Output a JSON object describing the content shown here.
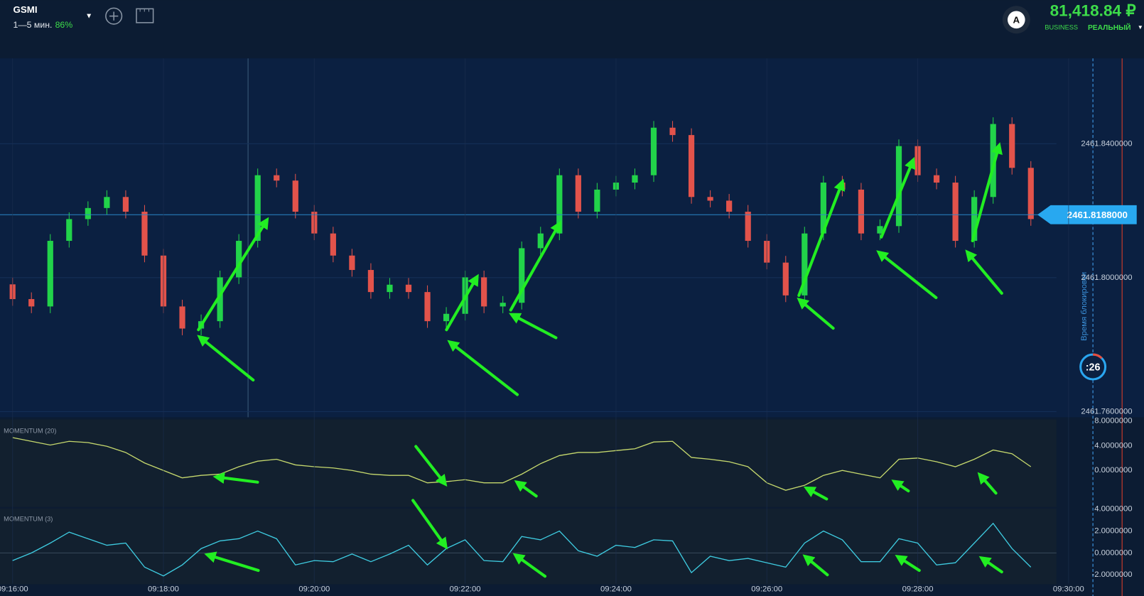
{
  "header": {
    "asset": "GSMI",
    "timeframe": "1—5 мин.",
    "payout": "86%",
    "balance": "81,418.84 ₽",
    "account_type": "BUSINESS",
    "account_mode": "РЕАЛЬНЫЙ",
    "avatar": "A"
  },
  "timer": {
    "label": "Время блокировки",
    "countdown": ":26"
  },
  "chart_data": [
    {
      "type": "candlestick",
      "x": [
        "09:16:00",
        "09:16:15",
        "09:16:30",
        "09:16:45",
        "09:17:00",
        "09:17:15",
        "09:17:30",
        "09:17:45",
        "09:18:00",
        "09:18:15",
        "09:18:30",
        "09:18:45",
        "09:19:00",
        "09:19:15",
        "09:19:30",
        "09:19:45",
        "09:20:00",
        "09:20:15",
        "09:20:30",
        "09:20:45",
        "09:21:00",
        "09:21:15",
        "09:21:30",
        "09:21:45",
        "09:22:00",
        "09:22:15",
        "09:22:30",
        "09:22:45",
        "09:23:00",
        "09:23:15",
        "09:23:30",
        "09:23:45",
        "09:24:00",
        "09:24:15",
        "09:24:30",
        "09:24:45",
        "09:25:00",
        "09:25:15",
        "09:25:30",
        "09:25:45",
        "09:26:00",
        "09:26:15",
        "09:26:30",
        "09:26:45",
        "09:27:00",
        "09:27:15",
        "09:27:30",
        "09:27:45",
        "09:28:00",
        "09:28:15",
        "09:28:30",
        "09:28:45",
        "09:29:00",
        "09:29:15",
        "09:29:30"
      ],
      "open": [
        2461.798,
        2461.7936,
        2461.7914,
        2461.811,
        2461.8175,
        2461.8208,
        2461.8241,
        2461.8197,
        2461.8066,
        2461.7914,
        2461.7848,
        2461.787,
        2461.8001,
        2461.811,
        2461.8306,
        2461.829,
        2461.8197,
        2461.8132,
        2461.8066,
        2461.8023,
        2461.7957,
        2461.7979,
        2461.7957,
        2461.787,
        2461.7892,
        2461.8001,
        2461.7914,
        2461.7925,
        2461.8088,
        2461.8132,
        2461.8306,
        2461.8197,
        2461.8263,
        2461.8284,
        2461.8306,
        2461.8448,
        2461.8426,
        2461.8241,
        2461.823,
        2461.8197,
        2461.811,
        2461.8045,
        2461.7947,
        2461.8132,
        2461.8284,
        2461.8263,
        2461.8132,
        2461.8154,
        2461.8393,
        2461.8306,
        2461.8284,
        2461.811,
        2461.8241,
        2461.8459,
        2461.8328
      ],
      "high": [
        2461.8,
        2461.7956,
        2461.813,
        2461.8195,
        2461.8228,
        2461.8261,
        2461.8261,
        2461.8217,
        2461.8086,
        2461.7934,
        2461.789,
        2461.8021,
        2461.813,
        2461.8326,
        2461.8326,
        2461.831,
        2461.8217,
        2461.8152,
        2461.8086,
        2461.8043,
        2461.7999,
        2461.7999,
        2461.7977,
        2461.7912,
        2461.8021,
        2461.8021,
        2461.7945,
        2461.8108,
        2461.8152,
        2461.8326,
        2461.8326,
        2461.8283,
        2461.8304,
        2461.8326,
        2461.8468,
        2461.8468,
        2461.8446,
        2461.8261,
        2461.825,
        2461.8217,
        2461.813,
        2461.8065,
        2461.8152,
        2461.8304,
        2461.8304,
        2461.8283,
        2461.8174,
        2461.8413,
        2461.8413,
        2461.8326,
        2461.8304,
        2461.8261,
        2461.8479,
        2461.8479,
        2461.8348
      ],
      "low": [
        2461.7916,
        2461.7894,
        2461.7894,
        2461.809,
        2461.8155,
        2461.8188,
        2461.8177,
        2461.8046,
        2461.7894,
        2461.7828,
        2461.7828,
        2461.785,
        2461.7981,
        2461.809,
        2461.827,
        2461.8177,
        2461.8112,
        2461.8046,
        2461.8003,
        2461.7937,
        2461.7937,
        2461.7937,
        2461.785,
        2461.785,
        2461.7872,
        2461.7894,
        2461.7894,
        2461.7905,
        2461.8068,
        2461.8112,
        2461.8177,
        2461.8177,
        2461.8243,
        2461.8264,
        2461.8286,
        2461.8406,
        2461.8221,
        2461.821,
        2461.8177,
        2461.809,
        2461.8025,
        2461.7927,
        2461.7927,
        2461.8112,
        2461.8243,
        2461.8112,
        2461.8112,
        2461.8134,
        2461.8286,
        2461.8264,
        2461.809,
        2461.809,
        2461.8221,
        2461.8308,
        2461.8155
      ],
      "close": [
        2461.7936,
        2461.7914,
        2461.811,
        2461.8175,
        2461.8208,
        2461.8241,
        2461.8197,
        2461.8066,
        2461.7914,
        2461.7848,
        2461.787,
        2461.8001,
        2461.811,
        2461.8306,
        2461.829,
        2461.8197,
        2461.8132,
        2461.8066,
        2461.8023,
        2461.7957,
        2461.7979,
        2461.7957,
        2461.787,
        2461.7892,
        2461.8001,
        2461.7914,
        2461.7925,
        2461.8088,
        2461.8132,
        2461.8306,
        2461.8197,
        2461.8263,
        2461.8284,
        2461.8306,
        2461.8448,
        2461.8426,
        2461.8241,
        2461.823,
        2461.8197,
        2461.811,
        2461.8045,
        2461.7947,
        2461.8132,
        2461.8284,
        2461.8263,
        2461.8132,
        2461.8154,
        2461.8393,
        2461.8306,
        2461.8284,
        2461.811,
        2461.8241,
        2461.8459,
        2461.8328,
        2461.8175
      ],
      "up_color": "#22d34a",
      "down_color": "#e2534b",
      "xlim": [
        "09:15:50",
        "09:31:00"
      ],
      "ylim": [
        2461.7583,
        2461.8655
      ],
      "yticks": [
        {
          "value": 2461.84,
          "label": "2461.8400000"
        },
        {
          "value": 2461.8,
          "label": "2461.8000000"
        },
        {
          "value": 2461.76,
          "label": "2461.7600000"
        }
      ],
      "current_price": {
        "value": 2461.8188,
        "label": "2461.8188000"
      },
      "grid": true
    },
    {
      "type": "line",
      "title": "MOMENTUM (20)",
      "x": [
        "09:16:00",
        "09:16:15",
        "09:16:30",
        "09:16:45",
        "09:17:00",
        "09:17:15",
        "09:17:30",
        "09:17:45",
        "09:18:00",
        "09:18:15",
        "09:18:30",
        "09:18:45",
        "09:19:00",
        "09:19:15",
        "09:19:30",
        "09:19:45",
        "09:20:00",
        "09:20:15",
        "09:20:30",
        "09:20:45",
        "09:21:00",
        "09:21:15",
        "09:21:30",
        "09:21:45",
        "09:22:00",
        "09:22:15",
        "09:22:30",
        "09:22:45",
        "09:23:00",
        "09:23:15",
        "09:23:30",
        "09:23:45",
        "09:24:00",
        "09:24:15",
        "09:24:30",
        "09:24:45",
        "09:25:00",
        "09:25:15",
        "09:25:30",
        "09:25:45",
        "09:26:00",
        "09:26:15",
        "09:26:30",
        "09:26:45",
        "09:27:00",
        "09:27:15",
        "09:27:30",
        "09:27:45",
        "09:28:00",
        "09:28:15",
        "09:28:30",
        "09:28:45",
        "09:29:00",
        "09:29:15",
        "09:29:30"
      ],
      "values": [
        5.3,
        4.7,
        4.1,
        4.7,
        4.5,
        3.9,
        2.9,
        1.2,
        0,
        -1.2,
        -0.8,
        -0.6,
        0.6,
        1.5,
        1.8,
        0.9,
        0.6,
        0.4,
        0,
        -0.6,
        -0.8,
        -0.8,
        -2.0,
        -1.8,
        -1.5,
        -2.0,
        -2.0,
        -0.6,
        1.1,
        2.4,
        2.9,
        2.9,
        3.2,
        3.5,
        4.6,
        4.7,
        2.1,
        1.8,
        1.4,
        0.6,
        -2.0,
        -3.2,
        -2.4,
        -0.8,
        0,
        -0.6,
        -1.2,
        1.8,
        2.0,
        1.4,
        0.6,
        1.8,
        3.3,
        2.7,
        0.6
      ],
      "color": "#c5d86d",
      "xlim": [
        "09:15:50",
        "09:31:00"
      ],
      "ylim": [
        -5.9,
        8
      ],
      "yticks": [
        {
          "value": 8,
          "label": "8.0000000"
        },
        {
          "value": 4,
          "label": "4.0000000"
        },
        {
          "value": 0,
          "label": "0.0000000"
        }
      ]
    },
    {
      "type": "line",
      "title": "MOMENTUM (3)",
      "x": [
        "09:16:00",
        "09:16:15",
        "09:16:30",
        "09:16:45",
        "09:17:00",
        "09:17:15",
        "09:17:30",
        "09:17:45",
        "09:18:00",
        "09:18:15",
        "09:18:30",
        "09:18:45",
        "09:19:00",
        "09:19:15",
        "09:19:30",
        "09:19:45",
        "09:20:00",
        "09:20:15",
        "09:20:30",
        "09:20:45",
        "09:21:00",
        "09:21:15",
        "09:21:30",
        "09:21:45",
        "09:22:00",
        "09:22:15",
        "09:22:30",
        "09:22:45",
        "09:23:00",
        "09:23:15",
        "09:23:30",
        "09:23:45",
        "09:24:00",
        "09:24:15",
        "09:24:30",
        "09:24:45",
        "09:25:00",
        "09:25:15",
        "09:25:30",
        "09:25:45",
        "09:26:00",
        "09:26:15",
        "09:26:30",
        "09:26:45",
        "09:27:00",
        "09:27:15",
        "09:27:30",
        "09:27:45",
        "09:28:00",
        "09:28:15",
        "09:28:30",
        "09:28:45",
        "09:29:00",
        "09:29:15",
        "09:29:30"
      ],
      "values": [
        -0.7,
        0,
        0.9,
        1.9,
        1.3,
        0.7,
        0.9,
        -1.3,
        -2.1,
        -1.1,
        0.4,
        1.1,
        1.3,
        2.0,
        1.3,
        -1.1,
        -0.7,
        -0.8,
        -0.1,
        -0.8,
        -0.1,
        0.7,
        -1.1,
        0.4,
        1.2,
        -0.7,
        -0.8,
        1.5,
        1.2,
        2.0,
        0.2,
        -0.3,
        0.7,
        0.5,
        1.2,
        1.1,
        -1.8,
        -0.3,
        -0.7,
        -0.5,
        -0.9,
        -1.3,
        0.9,
        2.0,
        1.2,
        -0.8,
        -0.8,
        1.3,
        0.9,
        -1.1,
        -0.9,
        0.9,
        2.7,
        0.4,
        -1.3
      ],
      "color": "#3ecbe0",
      "xlim": [
        "09:15:50",
        "09:31:00"
      ],
      "ylim": [
        -2.8,
        4
      ],
      "yticks": [
        {
          "value": 4,
          "label": "4.0000000"
        },
        {
          "value": 2,
          "label": "2.0000000"
        },
        {
          "value": 0,
          "label": "0.0000000"
        },
        {
          "value": -2,
          "label": "-2.0000000"
        }
      ],
      "xticks": [
        "09:16:00",
        "09:18:00",
        "09:20:00",
        "09:22:00",
        "09:24:00",
        "09:26:00",
        "09:28:00",
        "09:30:00"
      ],
      "zero_line": true
    }
  ]
}
